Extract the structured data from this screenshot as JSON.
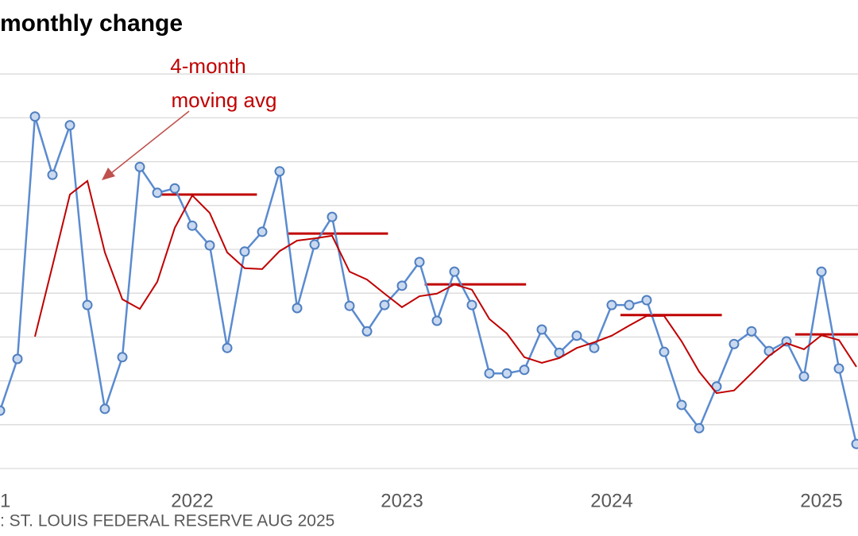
{
  "chart_data": {
    "type": "line",
    "title": "monthly change",
    "source": ": ST. LOUIS FEDERAL RESERVE AUG 2025",
    "annotation": {
      "lines": [
        "4-month",
        "moving avg"
      ],
      "color": "#c00000",
      "arrow_color": "#c0504d"
    },
    "categories": [
      "1",
      null,
      null,
      null,
      null,
      null,
      null,
      null,
      null,
      null,
      null,
      null,
      "2022",
      null,
      null,
      null,
      null,
      null,
      null,
      null,
      null,
      null,
      null,
      null,
      "2023",
      null,
      null,
      null,
      null,
      null,
      null,
      null,
      null,
      null,
      null,
      null,
      "2024",
      null,
      null,
      null,
      null,
      null,
      null,
      null,
      null,
      null,
      null,
      null,
      "2025",
      null,
      null
    ],
    "series": [
      {
        "color": "#5b8bd0",
        "marker": "circle",
        "values": [
          null,
          1.32,
          2.5,
          8.03,
          6.7,
          7.83,
          3.73,
          1.36,
          2.54,
          6.88,
          6.29,
          6.39,
          5.54,
          5.09,
          2.75,
          4.95,
          5.4,
          6.78,
          3.66,
          5.11,
          5.74,
          3.71,
          3.13,
          3.73,
          4.17,
          4.71,
          3.37,
          4.49,
          3.73,
          2.17,
          2.17,
          2.25,
          3.17,
          2.64,
          3.03,
          2.75,
          3.73,
          3.73,
          3.84,
          2.66,
          1.45,
          0.92,
          1.87,
          2.84,
          3.13,
          2.68,
          2.9,
          2.1,
          4.49,
          2.28,
          0.56
        ]
      },
      {
        "color": "#c00000",
        "marker": "none",
        "values": [
          null,
          null,
          null,
          3.01,
          4.62,
          6.25,
          6.56,
          4.93,
          3.86,
          3.64,
          4.26,
          5.49,
          6.23,
          5.83,
          4.93,
          4.57,
          4.55,
          4.96,
          5.2,
          5.25,
          5.31,
          4.49,
          4.31,
          3.99,
          3.68,
          3.93,
          3.99,
          4.2,
          4.08,
          3.41,
          3.08,
          2.54,
          2.41,
          2.52,
          2.75,
          2.88,
          3.03,
          3.26,
          3.48,
          3.48,
          2.9,
          2.21,
          1.72,
          1.78,
          2.17,
          2.57,
          2.86,
          2.72,
          3.04,
          2.93,
          2.32
        ]
      }
    ],
    "reference_lines": {
      "color": "#c00000",
      "lines": [
        {
          "value": 6.25,
          "from": 9.9,
          "to": 15.7
        },
        {
          "value": 5.36,
          "from": 17.4,
          "to": 23.2
        },
        {
          "value": 4.2,
          "from": 25.3,
          "to": 31.1
        },
        {
          "value": 3.5,
          "from": 36.5,
          "to": 42.3
        },
        {
          "value": 3.06,
          "from": 46.5,
          "to": 50.1
        }
      ]
    },
    "ylim": [
      0,
      9
    ],
    "yticks": [
      0,
      1,
      2,
      3,
      4,
      5,
      6,
      7,
      8,
      9
    ],
    "grid": true,
    "show_y_tick_labels": false
  }
}
